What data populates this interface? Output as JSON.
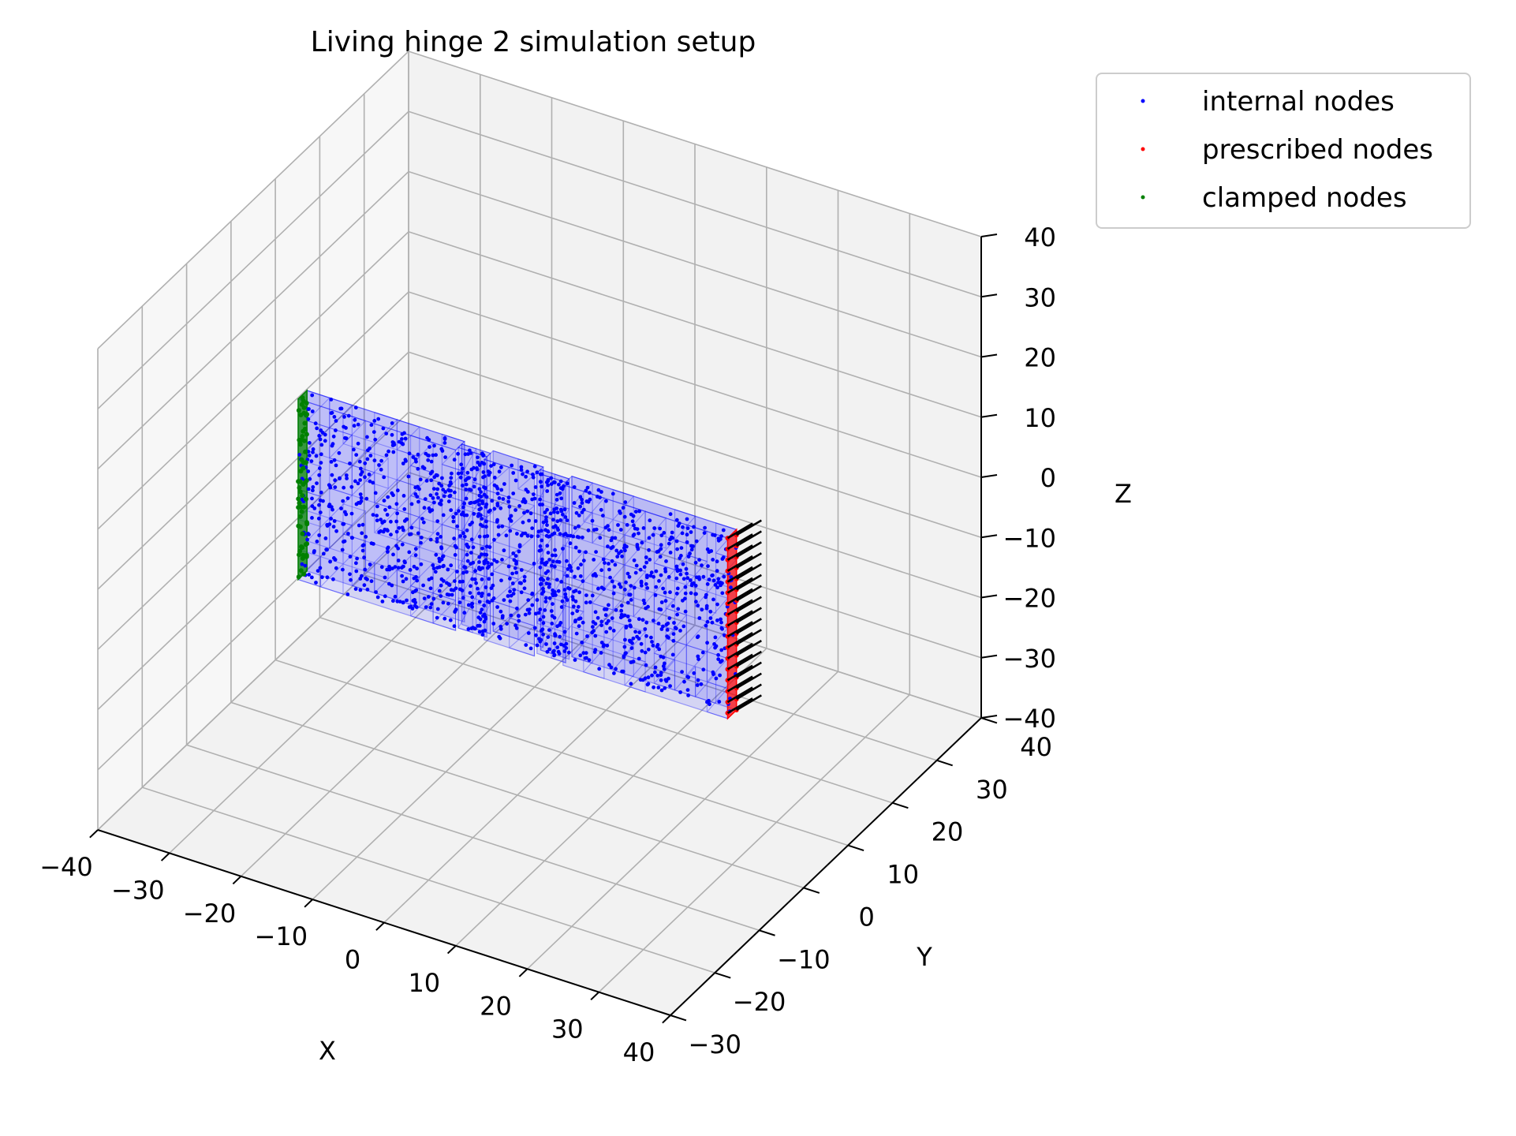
{
  "chart_data": {
    "type": "scatter",
    "projection": "3d",
    "title": "Living hinge 2 simulation setup",
    "xlabel": "X",
    "ylabel": "Y",
    "zlabel": "Z",
    "xlim": [
      -40,
      40
    ],
    "ylim": [
      -30,
      40
    ],
    "zlim": [
      -40,
      40
    ],
    "x_ticks": [
      -40,
      -30,
      -20,
      -10,
      0,
      10,
      20,
      30,
      40
    ],
    "y_ticks": [
      -30,
      -20,
      -10,
      0,
      10,
      20,
      30,
      40
    ],
    "z_ticks": [
      -40,
      -30,
      -20,
      -10,
      0,
      10,
      20,
      30,
      40
    ],
    "x_tick_labels": [
      "−40",
      "−30",
      "−20",
      "−10",
      "0",
      "10",
      "20",
      "30",
      "40"
    ],
    "y_tick_labels": [
      "−30",
      "−20",
      "−10",
      "0",
      "10",
      "20",
      "30",
      "40"
    ],
    "z_tick_labels": [
      "−40",
      "−30",
      "−20",
      "−10",
      "0",
      "10",
      "20",
      "30",
      "40"
    ],
    "grid": true,
    "legend_position": "outside top-right",
    "series": [
      {
        "name": "internal nodes",
        "color": "#0000ff"
      },
      {
        "name": "prescribed nodes",
        "color": "#ff0000"
      },
      {
        "name": "clamped nodes",
        "color": "#008000"
      }
    ],
    "geometry": {
      "x_range": [
        -30,
        30
      ],
      "y_range": [
        -1,
        1
      ],
      "z_range": [
        -15,
        15
      ],
      "hinge_1_x": [
        -8,
        -4
      ],
      "hinge_2_x": [
        3,
        7
      ],
      "hinge_thickness": 0.4,
      "clamped_face_x": -30,
      "prescribed_face_x": 30,
      "prescribed_arrow_direction": "+y",
      "prescribed_arrow_length": 4,
      "mesh_color": "#0000ff",
      "mesh_fill_opacity": 0.12
    }
  }
}
